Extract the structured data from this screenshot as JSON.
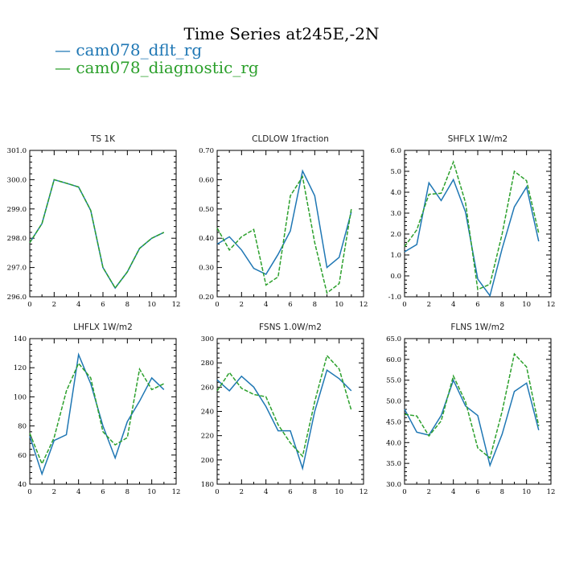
{
  "figure_title": "Time Series at245E,-2N",
  "legend": [
    {
      "label": "cam078_dflt_rg",
      "color": "#1f77b4",
      "dash": "solid"
    },
    {
      "label": "cam078_diagnostic_rg",
      "color": "#2ca02c",
      "dash": "dashed"
    }
  ],
  "chart_data": [
    {
      "type": "line",
      "title": "TS   1K",
      "xlabel": "",
      "ylabel": "",
      "xlim": [
        0,
        12
      ],
      "ylim": [
        296.0,
        301.0
      ],
      "xticks": [
        0,
        2,
        4,
        6,
        8,
        10,
        12
      ],
      "yticks": [
        296.0,
        297.0,
        298.0,
        299.0,
        300.0,
        301.0
      ],
      "ytick_decimals": 1,
      "x": [
        0,
        1,
        2,
        3,
        4,
        5,
        6,
        7,
        8,
        9,
        10,
        11
      ],
      "series": [
        {
          "name": "cam078_dflt_rg",
          "color": "#1f77b4",
          "dash": "solid",
          "values": [
            297.85,
            298.5,
            300.0,
            299.88,
            299.75,
            298.95,
            297.0,
            296.3,
            296.85,
            297.65,
            298.0,
            298.2
          ]
        },
        {
          "name": "cam078_diagnostic_rg",
          "color": "#2ca02c",
          "dash": "dashed",
          "values": [
            297.85,
            298.5,
            300.0,
            299.88,
            299.75,
            298.95,
            297.0,
            296.3,
            296.85,
            297.65,
            298.0,
            298.2
          ]
        }
      ]
    },
    {
      "type": "line",
      "title": "CLDLOW   1fraction",
      "xlabel": "",
      "ylabel": "",
      "xlim": [
        0,
        12
      ],
      "ylim": [
        0.2,
        0.7
      ],
      "xticks": [
        0,
        2,
        4,
        6,
        8,
        10,
        12
      ],
      "yticks": [
        0.2,
        0.3,
        0.4,
        0.5,
        0.6,
        0.7
      ],
      "ytick_decimals": 2,
      "x": [
        0,
        1,
        2,
        3,
        4,
        5,
        6,
        7,
        8,
        9,
        10,
        11
      ],
      "series": [
        {
          "name": "cam078_dflt_rg",
          "color": "#1f77b4",
          "dash": "solid",
          "values": [
            0.38,
            0.405,
            0.36,
            0.297,
            0.277,
            0.345,
            0.425,
            0.63,
            0.545,
            0.3,
            0.335,
            0.49
          ]
        },
        {
          "name": "cam078_diagnostic_rg",
          "color": "#2ca02c",
          "dash": "dashed",
          "values": [
            0.435,
            0.36,
            0.405,
            0.43,
            0.24,
            0.268,
            0.545,
            0.61,
            0.385,
            0.213,
            0.245,
            0.5
          ]
        }
      ]
    },
    {
      "type": "line",
      "title": "SHFLX   1W/m2",
      "xlabel": "",
      "ylabel": "",
      "xlim": [
        0,
        12
      ],
      "ylim": [
        -1.0,
        6.0
      ],
      "xticks": [
        0,
        2,
        4,
        6,
        8,
        10,
        12
      ],
      "yticks": [
        -1.0,
        0.0,
        1.0,
        2.0,
        3.0,
        4.0,
        5.0,
        6.0
      ],
      "ytick_decimals": 1,
      "x": [
        0,
        1,
        2,
        3,
        4,
        5,
        6,
        7,
        8,
        9,
        10,
        11
      ],
      "series": [
        {
          "name": "cam078_dflt_rg",
          "color": "#1f77b4",
          "dash": "solid",
          "values": [
            1.15,
            1.5,
            4.45,
            3.6,
            4.6,
            3.05,
            -0.15,
            -0.95,
            1.3,
            3.3,
            4.25,
            1.65
          ]
        },
        {
          "name": "cam078_diagnostic_rg",
          "color": "#2ca02c",
          "dash": "dashed",
          "values": [
            1.4,
            2.2,
            3.9,
            3.95,
            5.45,
            3.5,
            -0.65,
            -0.4,
            2.0,
            5.0,
            4.55,
            2.05
          ]
        }
      ]
    },
    {
      "type": "line",
      "title": "LHFLX   1W/m2",
      "xlabel": "",
      "ylabel": "",
      "xlim": [
        0,
        12
      ],
      "ylim": [
        40,
        140
      ],
      "xticks": [
        0,
        2,
        4,
        6,
        8,
        10,
        12
      ],
      "yticks": [
        40,
        60,
        80,
        100,
        120,
        140
      ],
      "ytick_decimals": 0,
      "x": [
        0,
        1,
        2,
        3,
        4,
        5,
        6,
        7,
        8,
        9,
        10,
        11
      ],
      "series": [
        {
          "name": "cam078_dflt_rg",
          "color": "#1f77b4",
          "dash": "solid",
          "values": [
            73,
            47,
            70,
            74,
            129,
            109,
            80,
            58,
            83,
            97,
            113,
            105
          ]
        },
        {
          "name": "cam078_diagnostic_rg",
          "color": "#2ca02c",
          "dash": "dashed",
          "values": [
            75,
            54,
            72,
            104,
            123,
            113,
            76,
            67,
            72,
            119,
            105,
            109
          ]
        }
      ]
    },
    {
      "type": "line",
      "title": "FSNS   1.0W/m2",
      "xlabel": "",
      "ylabel": "",
      "xlim": [
        0,
        12
      ],
      "ylim": [
        180,
        300
      ],
      "xticks": [
        0,
        2,
        4,
        6,
        8,
        10,
        12
      ],
      "yticks": [
        180,
        200,
        220,
        240,
        260,
        280,
        300
      ],
      "ytick_decimals": 0,
      "x": [
        0,
        1,
        2,
        3,
        4,
        5,
        6,
        7,
        8,
        9,
        10,
        11
      ],
      "series": [
        {
          "name": "cam078_dflt_rg",
          "color": "#1f77b4",
          "dash": "solid",
          "values": [
            266,
            257,
            269,
            260,
            244,
            224,
            224,
            193,
            240,
            274,
            267,
            257
          ]
        },
        {
          "name": "cam078_diagnostic_rg",
          "color": "#2ca02c",
          "dash": "dashed",
          "values": [
            257,
            272,
            259,
            254,
            252,
            229,
            214,
            203,
            248,
            286,
            275,
            241
          ]
        }
      ]
    },
    {
      "type": "line",
      "title": "FLNS   1W/m2",
      "xlabel": "",
      "ylabel": "",
      "xlim": [
        0,
        12
      ],
      "ylim": [
        30.0,
        65.0
      ],
      "xticks": [
        0,
        2,
        4,
        6,
        8,
        10,
        12
      ],
      "yticks": [
        30.0,
        35.0,
        40.0,
        45.0,
        50.0,
        55.0,
        60.0,
        65.0
      ],
      "ytick_decimals": 1,
      "x": [
        0,
        1,
        2,
        3,
        4,
        5,
        6,
        7,
        8,
        9,
        10,
        11
      ],
      "series": [
        {
          "name": "cam078_dflt_rg",
          "color": "#1f77b4",
          "dash": "solid",
          "values": [
            48,
            42.5,
            41.8,
            46.5,
            55,
            48.8,
            46.5,
            34.5,
            42,
            52.3,
            54.3,
            43
          ]
        },
        {
          "name": "cam078_diagnostic_rg",
          "color": "#2ca02c",
          "dash": "dashed",
          "values": [
            46.8,
            46.4,
            41.6,
            45.2,
            56,
            49.8,
            38.7,
            36.3,
            47.5,
            61.3,
            58.2,
            44
          ]
        }
      ]
    }
  ]
}
